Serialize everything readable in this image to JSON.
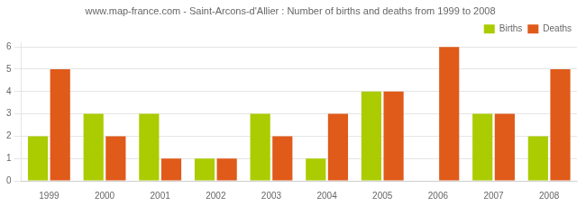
{
  "chart_data": {
    "type": "bar",
    "title": "www.map-france.com - Saint-Arcons-d'Allier : Number of births and deaths from 1999 to 2008",
    "categories": [
      1999,
      2000,
      2001,
      2002,
      2003,
      2004,
      2005,
      2006,
      2007,
      2008
    ],
    "series": [
      {
        "name": "Births",
        "color": "#aacc00",
        "values": [
          2,
          3,
          3,
          1,
          3,
          1,
          4,
          0,
          3,
          2
        ]
      },
      {
        "name": "Deaths",
        "color": "#e05a1a",
        "values": [
          5,
          2,
          1,
          1,
          2,
          3,
          4,
          6,
          3,
          5
        ]
      }
    ],
    "ylim": [
      0,
      6.2
    ],
    "yticks": [
      0,
      1,
      2,
      3,
      4,
      5,
      6
    ],
    "grid": true,
    "legend": "upper right"
  }
}
